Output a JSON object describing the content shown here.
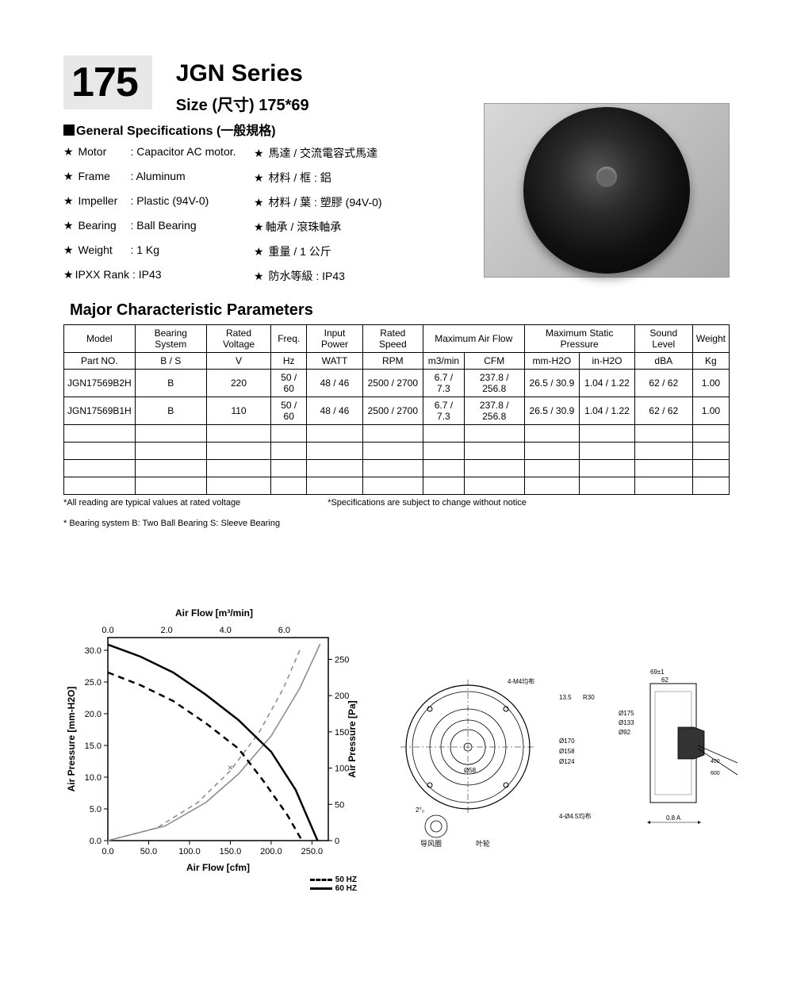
{
  "header": {
    "number": "175",
    "series": "JGN Series",
    "size": "Size (尺寸) 175*69"
  },
  "general": {
    "title": "General Specifications (一般規格)",
    "specs_en": [
      {
        "label": "Motor",
        "value": ": Capacitor AC motor."
      },
      {
        "label": "Frame",
        "value": ": Aluminum"
      },
      {
        "label": "Impeller",
        "value": ": Plastic (94V-0)"
      },
      {
        "label": "Bearing",
        "value": ": Ball Bearing"
      },
      {
        "label": "Weight",
        "value": ": 1  Kg"
      },
      {
        "label": "IPXX Rank",
        "value": ": IP43"
      }
    ],
    "specs_cn": [
      "馬達 / 交流電容式馬達",
      "材料 / 框 : 鋁",
      "材料 / 葉 : 塑膠 (94V-0)",
      "軸承 / 滾珠軸承",
      "重量 / 1 公斤",
      "防水等級 : IP43"
    ]
  },
  "major_title": "Major Characteristic Parameters",
  "table": {
    "header1": [
      "Model",
      "Bearing System",
      "Rated Voltage",
      "Freq.",
      "Input Power",
      "Rated Speed",
      "Maximum Air Flow",
      "Maximum Static Pressure",
      "Sound Level",
      "Weight"
    ],
    "header2": [
      "Part NO.",
      "B / S",
      "V",
      "Hz",
      "WATT",
      "RPM",
      "m3/min",
      "CFM",
      "mm-H2O",
      "in-H2O",
      "dBA",
      "Kg"
    ],
    "rows": [
      [
        "JGN17569B2H",
        "B",
        "220",
        "50 / 60",
        "48 / 46",
        "2500 / 2700",
        "6.7  /  7.3",
        "237.8  / 256.8",
        "26.5  / 30.9",
        "1.04  / 1.22",
        "62  /   62",
        "1.00"
      ],
      [
        "JGN17569B1H",
        "B",
        "110",
        "50 / 60",
        "48 / 46",
        "2500 / 2700",
        "6.7  /  7.3",
        "237.8  / 256.8",
        "26.5  / 30.9",
        "1.04  / 1.22",
        "62  /   62",
        "1.00"
      ]
    ],
    "empty_rows": 4,
    "notes": [
      "*All reading are typical values at rated voltage",
      "*Specifications are subject to change without notice",
      "* Bearing system  B: Two Ball Bearing  S: Sleeve Bearing"
    ]
  },
  "chart": {
    "title_top": "Air Flow [m³/min]",
    "x_label_bottom": "Air Flow [cfm]",
    "y_label_left": "Air Pressure [mm-H2O]",
    "y_label_right": "Air Pressure [Pa]",
    "legend_50": "50 HZ",
    "legend_60": "60 HZ",
    "x_top_ticks": [
      0.0,
      2.0,
      4.0,
      6.0
    ],
    "x_top_max": 7.5,
    "x_bottom_ticks": [
      0.0,
      50.0,
      100.0,
      150.0,
      200.0,
      250.0
    ],
    "x_bottom_max": 270,
    "y_left_ticks": [
      0.0,
      5.0,
      10.0,
      15.0,
      20.0,
      25.0,
      30.0
    ],
    "y_left_max": 32,
    "y_right_ticks": [
      0,
      50,
      100,
      150,
      200,
      250
    ],
    "y_right_max": 280,
    "colors": {
      "axis": "#000000",
      "grid": "#cccccc",
      "curve_60": "#000000",
      "curve_50": "#000000",
      "sys_curve": "#888888",
      "bg": "#ffffff"
    },
    "line_width": {
      "main": 2.5,
      "sys": 1.5
    },
    "series_60hz_cfm_mmh2o": [
      [
        0,
        30.9
      ],
      [
        40,
        29.0
      ],
      [
        80,
        26.5
      ],
      [
        120,
        23.0
      ],
      [
        160,
        19.0
      ],
      [
        200,
        14.0
      ],
      [
        230,
        8.0
      ],
      [
        256.8,
        0
      ]
    ],
    "series_50hz_cfm_mmh2o": [
      [
        0,
        26.5
      ],
      [
        40,
        24.5
      ],
      [
        80,
        22.0
      ],
      [
        120,
        18.5
      ],
      [
        160,
        14.5
      ],
      [
        190,
        9.5
      ],
      [
        220,
        4.0
      ],
      [
        237.8,
        0
      ]
    ],
    "system_curve_dash_cfm_mmh2o": [
      [
        0,
        0
      ],
      [
        60,
        2.0
      ],
      [
        110,
        6.0
      ],
      [
        150,
        11.0
      ],
      [
        185,
        17.0
      ],
      [
        215,
        24.0
      ],
      [
        235,
        30.0
      ]
    ],
    "system_curve_solid_cfm_mmh2o": [
      [
        0,
        0
      ],
      [
        70,
        2.3
      ],
      [
        120,
        6.0
      ],
      [
        160,
        10.5
      ],
      [
        200,
        16.5
      ],
      [
        235,
        24.0
      ],
      [
        260,
        31.0
      ]
    ]
  },
  "drawing_labels": {
    "top_dim": "69±1",
    "top_dim2": "62",
    "left_dims": [
      "Ø170",
      "Ø158",
      "Ø124"
    ],
    "right_dims": [
      "Ø175",
      "Ø133",
      "Ø92"
    ],
    "hole": "4-M4均布",
    "hole2": "4-Ø4.5均布",
    "r": "R30",
    "r2": "13.5",
    "angle": "2°₀",
    "center": "Ø58",
    "wire": "400 / 600",
    "tol": "0.8 A",
    "cn1": "导风圈",
    "cn2": "叶轮"
  }
}
